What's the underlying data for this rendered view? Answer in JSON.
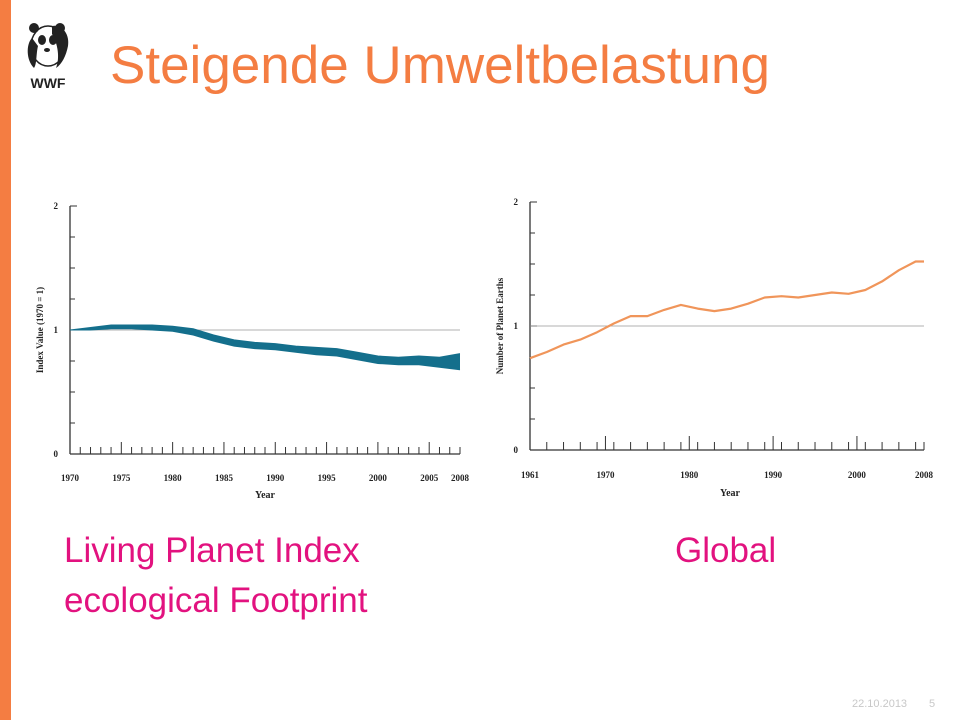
{
  "slide": {
    "title": "Steigende Umweltbelastung",
    "caption_left_line1": "Living Planet Index",
    "caption_left_line2": "ecological Footprint",
    "caption_right": "Global",
    "footer_date": "22.10.2013",
    "footer_page": "5",
    "logo_text": "WWF"
  },
  "colors": {
    "accent": "#f47d42",
    "caption": "#e2127f",
    "lpi_band": "#146f8c",
    "footprint_line": "#f0955a"
  },
  "chart_data": [
    {
      "type": "area",
      "ylabel": "Index Value (1970 = 1)",
      "xlabel": "Year",
      "xlim": [
        1970,
        2008
      ],
      "ylim": [
        0,
        2
      ],
      "x_tick_labels": [
        "1970",
        "1975",
        "1980",
        "1985",
        "1990",
        "1995",
        "2000",
        "2005",
        "2008"
      ],
      "y_tick_labels": [
        "0",
        "1",
        "2"
      ],
      "reference_line": 1,
      "x": [
        1970,
        1972,
        1974,
        1976,
        1978,
        1980,
        1982,
        1984,
        1986,
        1988,
        1990,
        1992,
        1994,
        1996,
        1998,
        2000,
        2002,
        2004,
        2006,
        2008
      ],
      "series": [
        {
          "values": [
            1.0,
            1.02,
            1.04,
            1.04,
            1.04,
            1.03,
            1.01,
            0.96,
            0.92,
            0.9,
            0.89,
            0.87,
            0.86,
            0.85,
            0.82,
            0.79,
            0.78,
            0.79,
            0.78,
            0.81
          ]
        },
        {
          "values": [
            1.0,
            1.0,
            1.01,
            1.01,
            1.0,
            0.99,
            0.96,
            0.91,
            0.87,
            0.85,
            0.84,
            0.82,
            0.8,
            0.79,
            0.76,
            0.73,
            0.72,
            0.72,
            0.7,
            0.68
          ]
        }
      ]
    },
    {
      "type": "line",
      "ylabel": "Number of Planet Earths",
      "xlabel": "Year",
      "xlim": [
        1961,
        2008
      ],
      "ylim": [
        0,
        2
      ],
      "x_tick_labels": [
        "1961",
        "1970",
        "1980",
        "1990",
        "2000",
        "2008"
      ],
      "y_tick_labels": [
        "0",
        "1",
        "2"
      ],
      "reference_line": 1,
      "x": [
        1961,
        1963,
        1965,
        1967,
        1969,
        1971,
        1973,
        1975,
        1977,
        1979,
        1981,
        1983,
        1985,
        1987,
        1989,
        1991,
        1993,
        1995,
        1997,
        1999,
        2001,
        2003,
        2005,
        2007,
        2008
      ],
      "series": [
        {
          "values": [
            0.74,
            0.79,
            0.85,
            0.89,
            0.95,
            1.02,
            1.08,
            1.08,
            1.13,
            1.17,
            1.14,
            1.12,
            1.14,
            1.18,
            1.23,
            1.24,
            1.23,
            1.25,
            1.27,
            1.26,
            1.29,
            1.36,
            1.45,
            1.52,
            1.52
          ]
        }
      ]
    }
  ]
}
